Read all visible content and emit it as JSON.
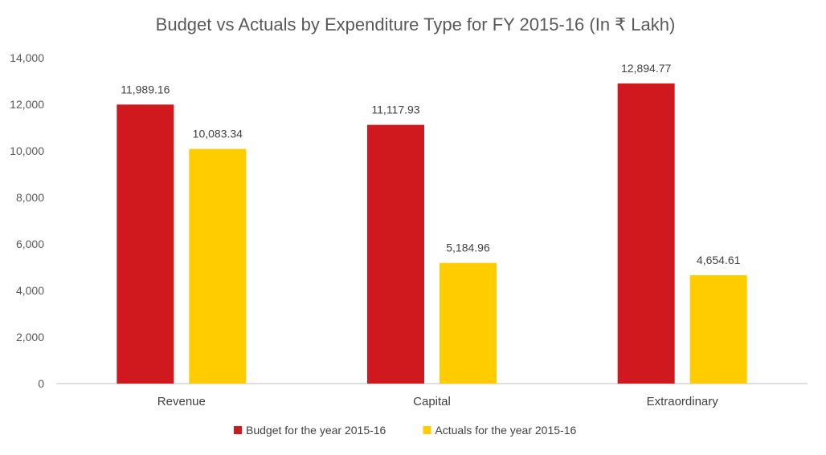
{
  "chart_data": {
    "type": "bar",
    "title": "Budget vs Actuals by Expenditure Type for FY 2015-16 (In ₹ Lakh)",
    "xlabel": "",
    "ylabel": "",
    "categories": [
      "Revenue",
      "Capital",
      "Extraordinary"
    ],
    "series": [
      {
        "name": "Budget for the year 2015-16",
        "color": "#D0191F",
        "values": [
          11989.16,
          11117.93,
          12894.77
        ],
        "labels": [
          "11,989.16",
          "11,117.93",
          "12,894.77"
        ]
      },
      {
        "name": "Actuals for the year 2015-16",
        "color": "#FFCC00",
        "values": [
          10083.34,
          5184.96,
          4654.61
        ],
        "labels": [
          "10,083.34",
          "5,184.96",
          "4,654.61"
        ]
      }
    ],
    "ylim": [
      0,
      14000
    ],
    "yticks": [
      0,
      2000,
      4000,
      6000,
      8000,
      10000,
      12000,
      14000
    ],
    "ytick_labels": [
      "0",
      "2,000",
      "4,000",
      "6,000",
      "8,000",
      "10,000",
      "12,000",
      "14,000"
    ],
    "grid": false,
    "legend_position": "bottom-center",
    "axis_color": "#BFBFBF"
  }
}
